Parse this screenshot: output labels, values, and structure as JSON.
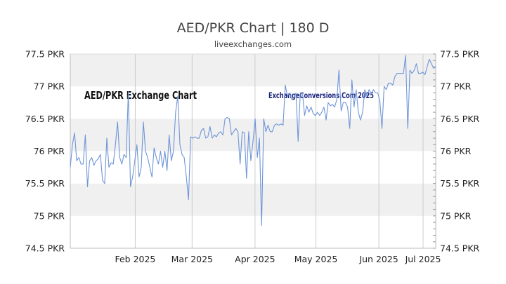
{
  "chart_data": {
    "type": "line",
    "title": "AED/PKR Chart | 180 D",
    "subtitle": "liveexchanges.com",
    "watermark_left": "AED/PKR Exchange Chart",
    "watermark_right": "ExchangeConversions.Com 2025",
    "xlabel": "",
    "ylabel": "",
    "ylim": [
      74.5,
      77.5
    ],
    "yticks": [
      74.5,
      75,
      75.5,
      76,
      76.5,
      77,
      77.5
    ],
    "ytick_labels": [
      "74.5 PKR",
      "75 PKR",
      "75.5 PKR",
      "76 PKR",
      "76.5 PKR",
      "77 PKR",
      "77.5 PKR"
    ],
    "x_range_days": [
      0,
      180
    ],
    "xticks": [
      {
        "day": 32,
        "label": "Feb 2025"
      },
      {
        "day": 60,
        "label": "Mar 2025"
      },
      {
        "day": 91,
        "label": "Apr 2025"
      },
      {
        "day": 121,
        "label": "May 2025"
      },
      {
        "day": 152,
        "label": "Jun 2025"
      },
      {
        "day": 182,
        "label": "Jul 2025"
      }
    ],
    "grid": true,
    "line_color": "#6f95d8",
    "band_color": "#f0f0f0",
    "series": [
      {
        "name": "AED/PKR",
        "values": [
          75.75,
          76.1,
          76.28,
          75.85,
          75.9,
          75.8,
          75.8,
          76.25,
          75.45,
          75.85,
          75.9,
          75.78,
          75.85,
          75.88,
          75.95,
          75.55,
          75.5,
          76.2,
          75.75,
          75.82,
          75.8,
          76.1,
          76.45,
          75.9,
          75.8,
          75.95,
          75.9,
          76.92,
          75.45,
          75.6,
          75.85,
          76.1,
          75.6,
          75.75,
          76.45,
          76.0,
          75.9,
          75.75,
          75.6,
          76.05,
          75.9,
          75.8,
          76.0,
          75.75,
          76.0,
          75.7,
          76.25,
          75.85,
          76.0,
          76.6,
          76.85,
          76.1,
          75.95,
          75.9,
          75.6,
          75.25,
          76.22,
          76.2,
          76.22,
          76.2,
          76.2,
          76.32,
          76.35,
          76.2,
          76.22,
          76.38,
          76.2,
          76.25,
          76.22,
          76.28,
          76.3,
          76.25,
          76.5,
          76.52,
          76.5,
          76.25,
          76.3,
          76.35,
          76.3,
          75.8,
          76.3,
          76.28,
          75.58,
          76.3,
          75.85,
          76.15,
          76.5,
          75.9,
          76.2,
          74.85,
          76.5,
          76.3,
          76.4,
          76.3,
          76.3,
          76.4,
          76.42,
          76.4,
          76.42,
          76.4,
          77.02,
          76.85,
          76.9,
          76.8,
          76.82,
          76.9,
          76.15,
          76.9,
          76.9,
          76.55,
          76.7,
          76.6,
          76.68,
          76.58,
          76.55,
          76.6,
          76.55,
          76.6,
          76.68,
          76.48,
          76.75,
          76.7,
          76.72,
          76.68,
          76.8,
          77.25,
          76.62,
          76.75,
          76.75,
          76.68,
          76.35,
          77.1,
          76.68,
          76.95,
          76.6,
          76.48,
          76.6,
          76.95,
          76.85,
          76.95,
          76.88,
          76.95,
          76.9,
          76.9,
          76.78,
          76.35,
          77.0,
          76.95,
          77.05,
          77.05,
          77.02,
          77.15,
          77.2,
          77.2,
          77.2,
          77.2,
          77.48,
          76.35,
          77.25,
          77.2,
          77.25,
          77.35,
          77.2,
          77.2,
          77.22,
          77.18,
          77.3,
          77.42,
          77.35,
          77.28,
          77.3
        ]
      }
    ]
  }
}
